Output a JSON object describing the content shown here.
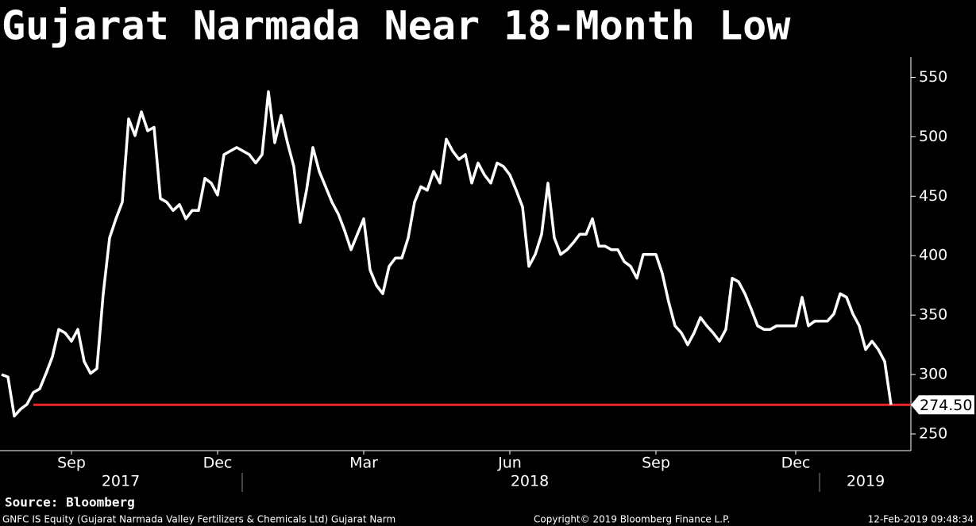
{
  "chart_data": {
    "type": "line",
    "title": "Gujarat Narmada Near 18-Month Low",
    "source": "Source: Bloomberg",
    "footer_left": "GNFC IS Equity (Gujarat Narmada Valley Fertilizers & Chemicals Ltd) Gujarat Narm",
    "footer_center": "Copyright© 2019 Bloomberg Finance L.P.",
    "footer_right": "12-Feb-2019 09:48:34",
    "categories": [
      null,
      null,
      null,
      null,
      null,
      null,
      null,
      null,
      null,
      null,
      null,
      "Sep",
      null,
      null,
      null,
      null,
      null,
      null,
      null,
      null,
      null,
      null,
      null,
      null,
      null,
      null,
      null,
      null,
      null,
      null,
      null,
      null,
      null,
      null,
      "Dec",
      null,
      null,
      null,
      null,
      null,
      null,
      null,
      null,
      null,
      null,
      null,
      null,
      null,
      null,
      null,
      null,
      null,
      null,
      null,
      null,
      null,
      null,
      "Mar",
      null,
      null,
      null,
      null,
      null,
      null,
      null,
      null,
      null,
      null,
      null,
      null,
      null,
      null,
      null,
      null,
      null,
      null,
      null,
      null,
      null,
      null,
      "Jun",
      null,
      null,
      null,
      null,
      null,
      null,
      null,
      null,
      null,
      null,
      null,
      null,
      null,
      null,
      null,
      null,
      null,
      null,
      null,
      null,
      null,
      null,
      "Sep",
      null,
      null,
      null,
      null,
      null,
      null,
      null,
      null,
      null,
      null,
      null,
      null,
      null,
      null,
      null,
      null,
      null,
      null,
      null,
      null,
      null,
      "Dec",
      null,
      null,
      null,
      null,
      null,
      null,
      null,
      null,
      null,
      null,
      null,
      null,
      null,
      null,
      null
    ],
    "years": [
      "2017",
      "2018",
      "2019"
    ],
    "values": [
      300,
      298,
      265,
      271,
      275,
      285,
      288,
      301,
      315,
      338,
      335,
      328,
      338,
      311,
      301,
      305,
      368,
      415,
      431,
      445,
      515,
      501,
      521,
      505,
      508,
      448,
      445,
      438,
      443,
      431,
      438,
      438,
      465,
      461,
      451,
      485,
      488,
      491,
      488,
      485,
      478,
      485,
      538,
      495,
      518,
      495,
      475,
      428,
      455,
      491,
      471,
      458,
      445,
      435,
      421,
      405,
      418,
      431,
      388,
      375,
      368,
      391,
      398,
      398,
      415,
      445,
      458,
      455,
      471,
      461,
      498,
      488,
      481,
      485,
      461,
      478,
      468,
      461,
      478,
      475,
      468,
      455,
      441,
      391,
      401,
      418,
      461,
      415,
      401,
      405,
      411,
      418,
      418,
      431,
      408,
      408,
      405,
      405,
      395,
      391,
      381,
      401,
      401,
      401,
      385,
      361,
      341,
      335,
      325,
      335,
      348,
      341,
      335,
      328,
      338,
      381,
      378,
      368,
      355,
      341,
      338,
      338,
      341,
      341,
      341,
      341,
      365,
      341,
      345,
      345,
      345,
      351,
      368,
      365,
      351,
      341,
      321,
      328,
      321,
      311,
      274.5
    ],
    "color": "#ffffff",
    "reference_line": {
      "value": 274.5,
      "label": "274.50",
      "color": "#e8262b"
    },
    "ylim": [
      236,
      567
    ],
    "yticks": [
      250,
      300,
      350,
      400,
      450,
      500,
      550
    ]
  }
}
